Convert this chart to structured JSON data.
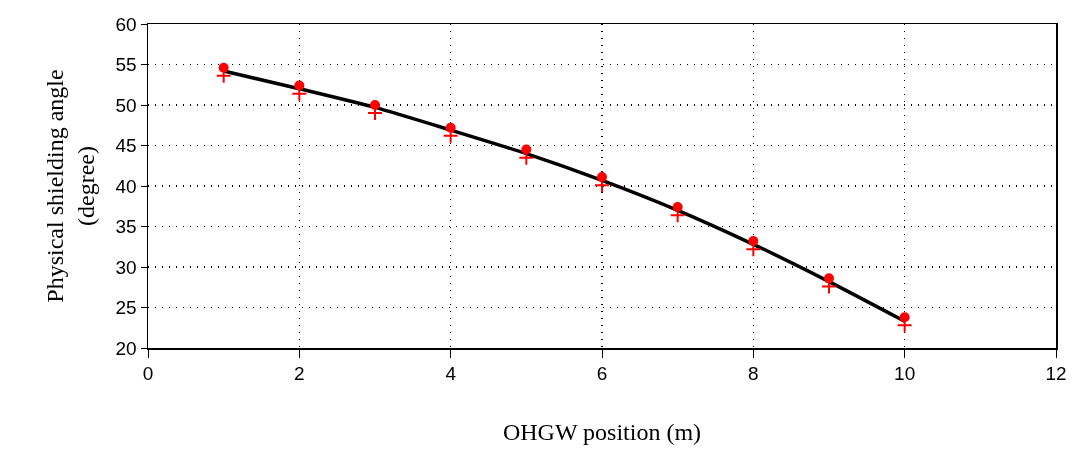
{
  "chart_data": {
    "type": "scatter",
    "xlabel": "OHGW position (m)",
    "ylabel": "Physical shielding angle\n(degree)",
    "x": [
      1,
      2,
      3,
      4,
      5,
      6,
      7,
      8,
      9,
      10
    ],
    "series": [
      {
        "type": "line",
        "color": "#000000",
        "marker": "none",
        "line_style": "solid",
        "values": [
          54.2,
          52.0,
          49.7,
          46.9,
          44.0,
          40.7,
          37.0,
          32.8,
          28.2,
          23.3
        ]
      },
      {
        "color": "#ff0000",
        "marker": "circle",
        "values": [
          54.6,
          52.4,
          50.0,
          47.2,
          44.5,
          41.1,
          37.4,
          33.2,
          28.6,
          23.8
        ]
      },
      {
        "color": "#ff0000",
        "marker": "cross",
        "values": [
          53.6,
          51.4,
          49.0,
          46.2,
          43.5,
          40.1,
          36.4,
          32.2,
          27.6,
          22.8
        ]
      }
    ],
    "xlim": [
      0,
      12
    ],
    "xticks": [
      0,
      2,
      4,
      6,
      8,
      10,
      12
    ],
    "ylim": [
      20,
      60
    ],
    "yticks": [
      20,
      25,
      30,
      35,
      40,
      45,
      50,
      55,
      60
    ],
    "grid": true
  }
}
